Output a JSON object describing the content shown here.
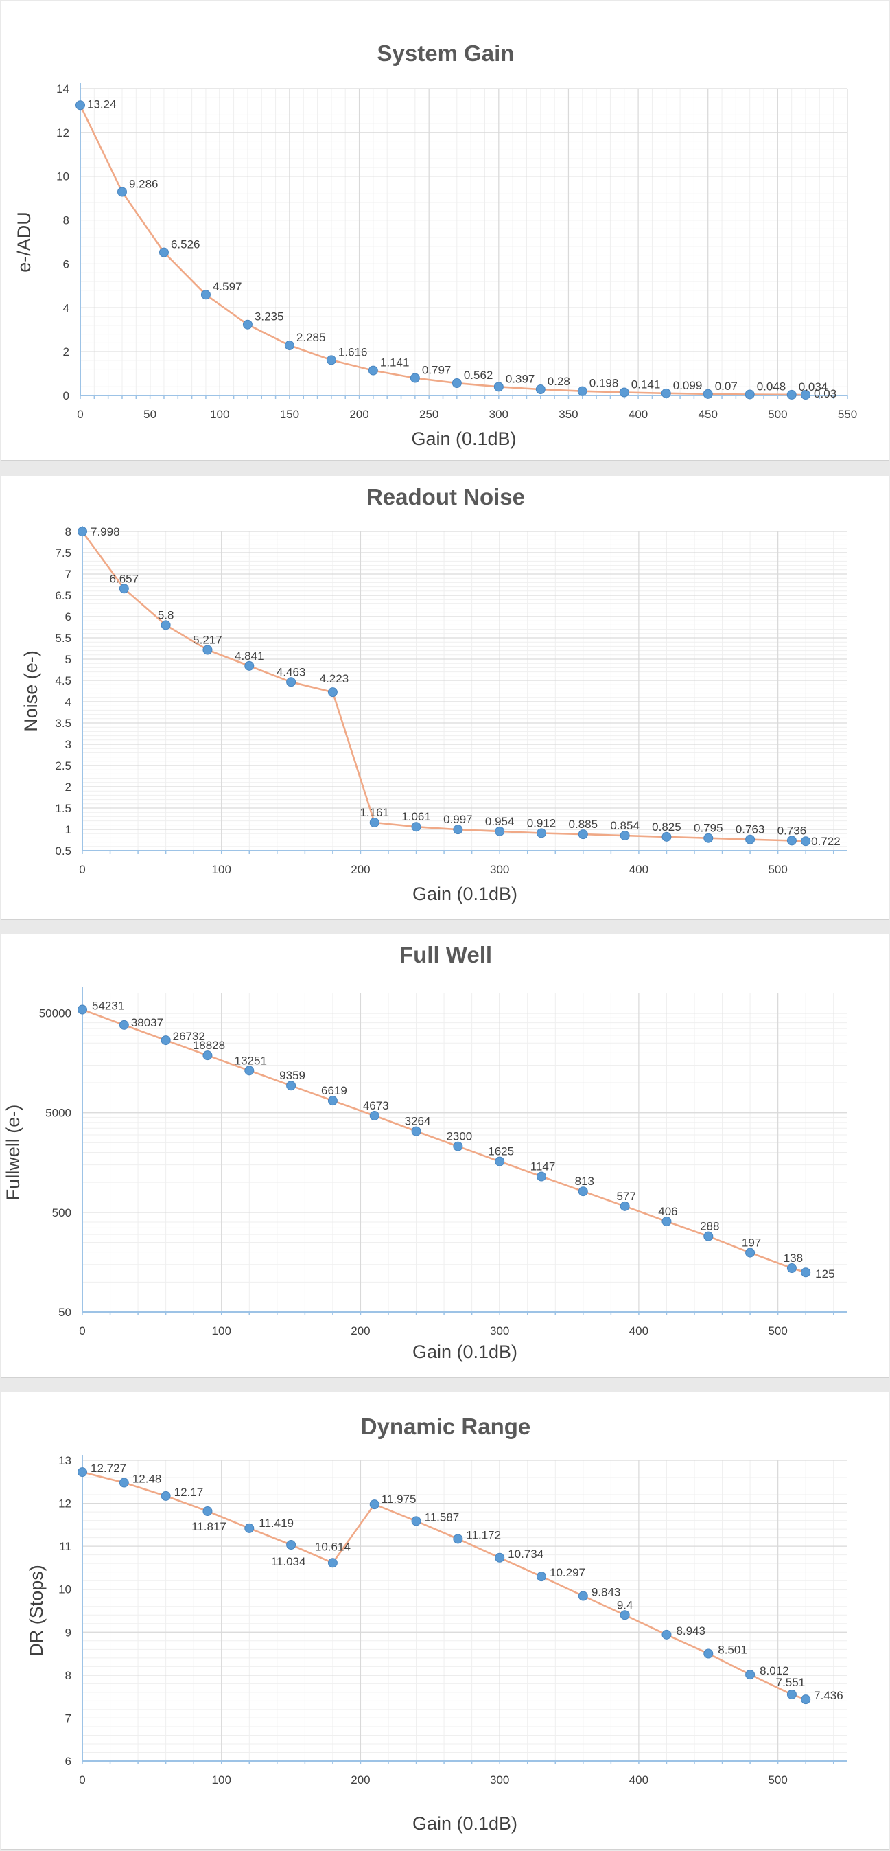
{
  "chart_data": [
    {
      "type": "line",
      "title": "System Gain",
      "xlabel": "Gain (0.1dB)",
      "ylabel": "e-/ADU",
      "xlim": [
        0,
        550
      ],
      "ylim": [
        0,
        14
      ],
      "x_ticks": [
        0,
        50,
        100,
        150,
        200,
        250,
        300,
        350,
        400,
        450,
        500,
        550
      ],
      "y_ticks": [
        0,
        2,
        4,
        6,
        8,
        10,
        12,
        14
      ],
      "y_scale": "linear",
      "grid": true,
      "series": [
        {
          "x": [
            0,
            30,
            60,
            90,
            120,
            150,
            180,
            210,
            240,
            270,
            300,
            330,
            360,
            390,
            420,
            450,
            480,
            510,
            520
          ],
          "y": [
            13.24,
            9.286,
            6.526,
            4.597,
            3.235,
            2.285,
            1.616,
            1.141,
            0.797,
            0.562,
            0.397,
            0.28,
            0.198,
            0.141,
            0.099,
            0.07,
            0.048,
            0.034,
            0.03
          ],
          "labels": [
            "13.24",
            "9.286",
            "6.526",
            "4.597",
            "3.235",
            "2.285",
            "1.616",
            "1.141",
            "0.797",
            "0.562",
            "0.397",
            "0.28",
            "0.198",
            "0.141",
            "0.099",
            "0.07",
            "0.048",
            "0.034",
            "0.03"
          ]
        }
      ]
    },
    {
      "type": "line",
      "title": "Readout Noise",
      "xlabel": "Gain (0.1dB)",
      "ylabel": "Noise (e-)",
      "xlim": [
        0,
        550
      ],
      "ylim": [
        0.5,
        8
      ],
      "x_ticks": [
        0,
        100,
        200,
        300,
        400,
        500
      ],
      "y_ticks": [
        0.5,
        1,
        1.5,
        2,
        2.5,
        3,
        3.5,
        4,
        4.5,
        5,
        5.5,
        6,
        6.5,
        7,
        7.5,
        8
      ],
      "y_scale": "linear",
      "grid": true,
      "series": [
        {
          "x": [
            0,
            30,
            60,
            90,
            120,
            150,
            180,
            210,
            240,
            270,
            300,
            330,
            360,
            390,
            420,
            450,
            480,
            510,
            520
          ],
          "y": [
            7.998,
            6.657,
            5.8,
            5.217,
            4.841,
            4.463,
            4.223,
            1.161,
            1.061,
            0.997,
            0.954,
            0.912,
            0.885,
            0.854,
            0.825,
            0.795,
            0.763,
            0.736,
            0.722
          ],
          "labels": [
            "7.998",
            "6.657",
            "5.8",
            "5.217",
            "4.841",
            "4.463",
            "4.223",
            "1.161",
            "1.061",
            "0.997",
            "0.954",
            "0.912",
            "0.885",
            "0.854",
            "0.825",
            "0.795",
            "0.763",
            "0.736",
            "0.722"
          ]
        }
      ]
    },
    {
      "type": "line",
      "title": "Full Well",
      "xlabel": "Gain (0.1dB)",
      "ylabel": "Fullwell (e-)",
      "xlim": [
        0,
        550
      ],
      "ylim": [
        50,
        80000
      ],
      "x_ticks": [
        0,
        100,
        200,
        300,
        400,
        500
      ],
      "y_ticks": [
        50,
        500,
        5000,
        50000
      ],
      "y_scale": "log",
      "grid": true,
      "series": [
        {
          "x": [
            0,
            30,
            60,
            90,
            120,
            150,
            180,
            210,
            240,
            270,
            300,
            330,
            360,
            390,
            420,
            450,
            480,
            510,
            520
          ],
          "y": [
            54231,
            38037,
            26732,
            18828,
            13251,
            9359,
            6619,
            4673,
            3264,
            2300,
            1625,
            1147,
            813,
            577,
            406,
            288,
            197,
            138,
            125
          ],
          "labels": [
            "54231",
            "38037",
            "26732",
            "18828",
            "13251",
            "9359",
            "6619",
            "4673",
            "3264",
            "2300",
            "1625",
            "1147",
            "813",
            "577",
            "406",
            "288",
            "197",
            "138",
            "125"
          ]
        }
      ]
    },
    {
      "type": "line",
      "title": "Dynamic Range",
      "xlabel": "Gain (0.1dB)",
      "ylabel": "DR (Stops)",
      "xlim": [
        0,
        550
      ],
      "ylim": [
        6,
        13
      ],
      "x_ticks": [
        0,
        100,
        200,
        300,
        400,
        500
      ],
      "y_ticks": [
        6,
        7,
        8,
        9,
        10,
        11,
        12,
        13
      ],
      "y_scale": "linear",
      "grid": true,
      "series": [
        {
          "x": [
            0,
            30,
            60,
            90,
            120,
            150,
            180,
            210,
            240,
            270,
            300,
            330,
            360,
            390,
            420,
            450,
            480,
            510,
            520
          ],
          "y": [
            12.727,
            12.48,
            12.17,
            11.817,
            11.419,
            11.034,
            10.614,
            11.975,
            11.587,
            11.172,
            10.734,
            10.297,
            9.843,
            9.4,
            8.943,
            8.501,
            8.012,
            7.551,
            7.436
          ],
          "labels": [
            "12.727",
            "12.48",
            "12.17",
            "11.817",
            "11.419",
            "11.034",
            "10.614",
            "11.975",
            "11.587",
            "11.172",
            "10.734",
            "10.297",
            "9.843",
            "9.4",
            "8.943",
            "8.501",
            "8.012",
            "7.551",
            "7.436"
          ]
        }
      ]
    }
  ],
  "colors": {
    "line": "#f0a987",
    "marker": "#5b9bd5",
    "marker_stroke": "#4a86c0",
    "axis": "#9dc3e6",
    "grid_major": "#d9d9d9",
    "grid_minor": "#efefef",
    "title": "#595959",
    "text": "#404040"
  }
}
